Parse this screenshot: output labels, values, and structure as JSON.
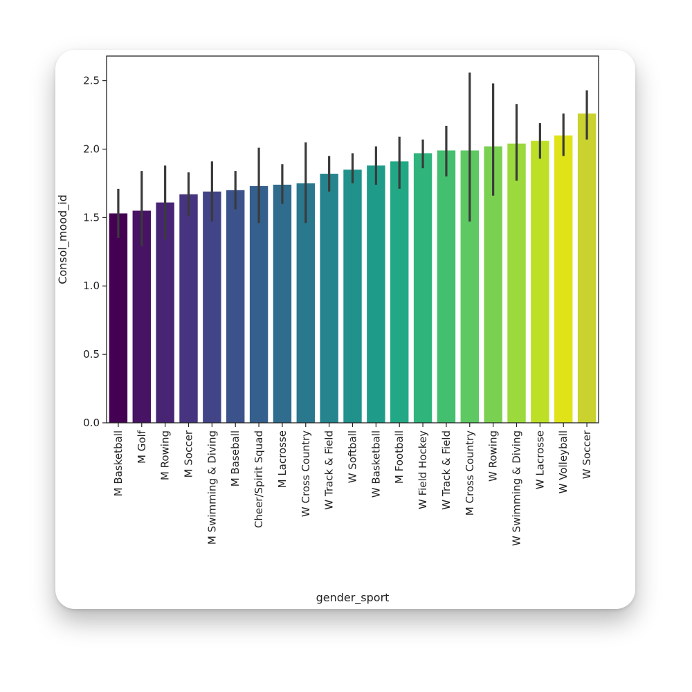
{
  "chart_data": {
    "type": "bar",
    "title": "",
    "xlabel": "gender_sport",
    "ylabel": "Consol_mood_id",
    "ylim": [
      0,
      2.68
    ],
    "yticks": [
      0.0,
      0.5,
      1.0,
      1.5,
      2.0,
      2.5
    ],
    "ytick_labels": [
      "0.0",
      "0.5",
      "1.0",
      "1.5",
      "2.0",
      "2.5"
    ],
    "categories": [
      "M Basketball",
      "M Golf",
      "M Rowing",
      "M Soccer",
      "M Swimming & Diving",
      "M Baseball",
      "Cheer/Spirit Squad",
      "M Lacrosse",
      "W Cross Country",
      "W Track & Field",
      "W Softball",
      "W Basketball",
      "M Football",
      "W Field Hockey",
      "W Track & Field",
      "M Cross Country",
      "W Rowing",
      "W Swimming & Diving",
      "W Lacrosse",
      "W Volleyball",
      "W Soccer"
    ],
    "values": [
      1.53,
      1.55,
      1.61,
      1.67,
      1.69,
      1.7,
      1.73,
      1.74,
      1.75,
      1.82,
      1.85,
      1.88,
      1.91,
      1.97,
      1.99,
      1.99,
      2.02,
      2.04,
      2.06,
      2.1,
      2.26
    ],
    "error_low": [
      1.35,
      1.29,
      1.34,
      1.51,
      1.47,
      1.56,
      1.46,
      1.6,
      1.46,
      1.69,
      1.75,
      1.74,
      1.71,
      1.86,
      1.8,
      1.47,
      1.66,
      1.77,
      1.93,
      1.95,
      2.07
    ],
    "error_high": [
      1.71,
      1.84,
      1.88,
      1.83,
      1.91,
      1.84,
      2.01,
      1.89,
      2.05,
      1.95,
      1.97,
      2.02,
      2.09,
      2.07,
      2.17,
      2.56,
      2.48,
      2.33,
      2.19,
      2.26,
      2.43
    ],
    "colors": [
      "#440154",
      "#471365",
      "#482475",
      "#463480",
      "#414487",
      "#3b528b",
      "#355f8d",
      "#2f6c8e",
      "#2a788e",
      "#25848e",
      "#21918c",
      "#1e9c89",
      "#22a884",
      "#2fb47c",
      "#44bf70",
      "#5ec962",
      "#7ad151",
      "#9bd93c",
      "#bddf26",
      "#dfe318",
      "#c9d22f"
    ],
    "error_color": "#3a3a3a",
    "grid": false,
    "legend": "none"
  }
}
